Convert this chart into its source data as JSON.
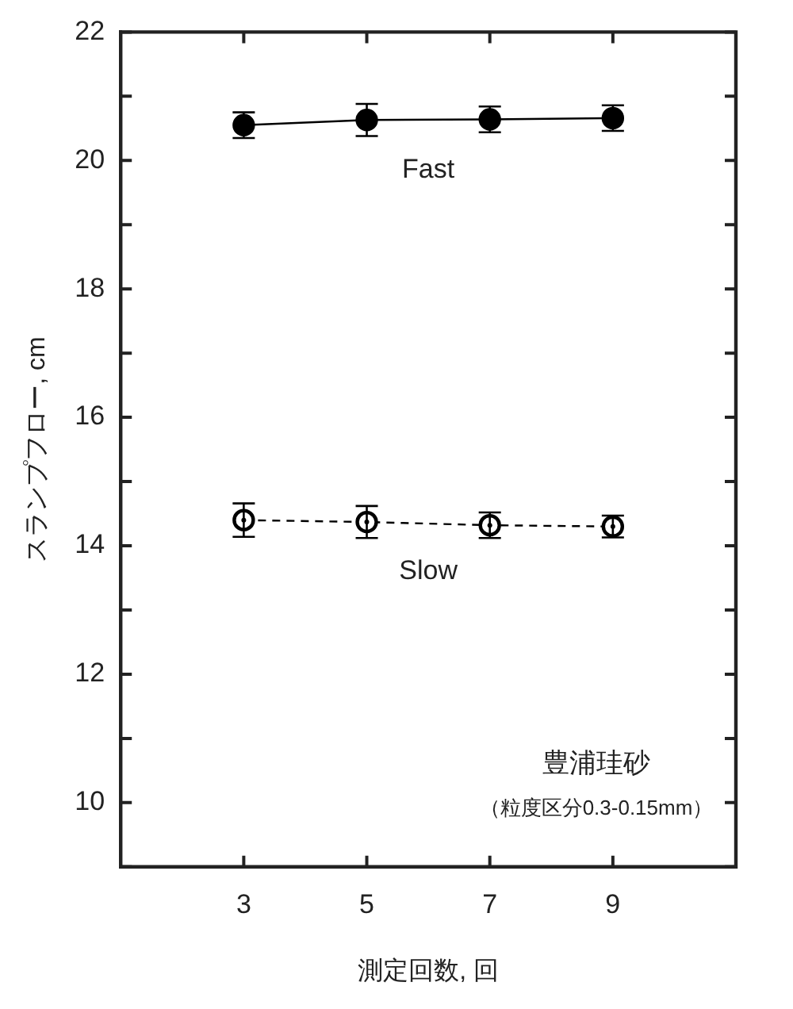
{
  "chart_data": {
    "type": "line",
    "xlabel": "測定回数, 回",
    "ylabel": "スランプフロー, cm",
    "x": [
      3,
      5,
      7,
      9
    ],
    "xlim": [
      1,
      11
    ],
    "xticks": [
      3,
      5,
      7,
      9
    ],
    "ylim": [
      9,
      22
    ],
    "yticks": [
      {
        "value": 9,
        "label": null
      },
      10,
      {
        "value": 11,
        "label": null
      },
      12,
      {
        "value": 13,
        "label": null
      },
      14,
      {
        "value": 15,
        "label": null
      },
      16,
      {
        "value": 17,
        "label": null
      },
      18,
      {
        "value": 19,
        "label": null
      },
      20,
      {
        "value": 21,
        "label": null
      },
      22
    ],
    "series": [
      {
        "name": "Fast",
        "color": "#000000",
        "marker": "circle",
        "line_style": "solid",
        "values": [
          20.55,
          20.63,
          20.64,
          20.66
        ],
        "errors": [
          0.2,
          0.25,
          0.2,
          0.2
        ]
      },
      {
        "name": "Slow",
        "color": "#000000",
        "marker": "circle",
        "line_style": "dashed",
        "values": [
          14.4,
          14.37,
          14.32,
          14.3
        ],
        "errors": [
          0.26,
          0.25,
          0.2,
          0.17
        ]
      }
    ],
    "annotations": [
      "豊浦珪砂",
      "（粒度区分0.3-0.15mm）"
    ],
    "grid": false,
    "legend": false
  }
}
